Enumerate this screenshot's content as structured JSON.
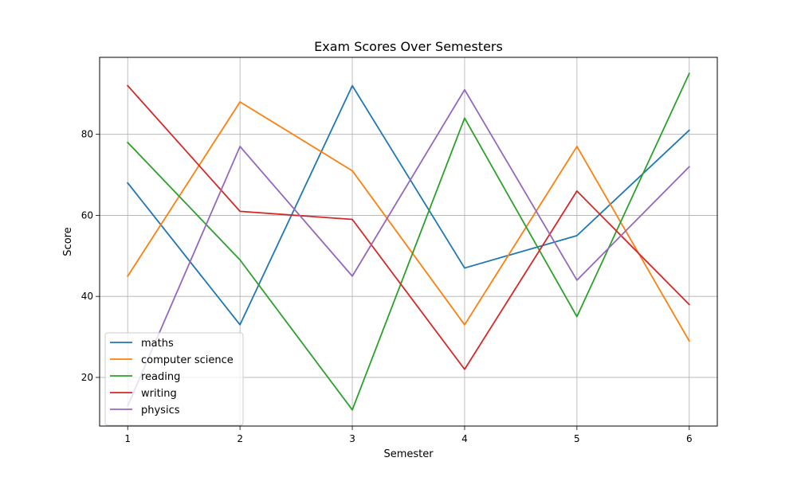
{
  "chart_data": {
    "type": "line",
    "title": "Exam Scores Over Semesters",
    "xlabel": "Semester",
    "ylabel": "Score",
    "x": [
      1,
      2,
      3,
      4,
      5,
      6
    ],
    "xlim": [
      0.75,
      6.25
    ],
    "ylim": [
      8,
      99
    ],
    "xticks": [
      1,
      2,
      3,
      4,
      5,
      6
    ],
    "yticks": [
      20,
      40,
      60,
      80
    ],
    "grid": true,
    "legend_position": "lower-left",
    "series": [
      {
        "name": "maths",
        "color": "#1f77b4",
        "values": [
          68,
          33,
          92,
          47,
          55,
          81
        ]
      },
      {
        "name": "computer science",
        "color": "#ff7f0e",
        "values": [
          45,
          88,
          71,
          33,
          77,
          29
        ]
      },
      {
        "name": "reading",
        "color": "#2ca02c",
        "values": [
          78,
          49,
          12,
          84,
          35,
          95
        ]
      },
      {
        "name": "writing",
        "color": "#d62728",
        "values": [
          92,
          61,
          59,
          22,
          66,
          38
        ]
      },
      {
        "name": "physics",
        "color": "#9467bd",
        "values": [
          13,
          77,
          45,
          91,
          44,
          72
        ]
      }
    ]
  }
}
